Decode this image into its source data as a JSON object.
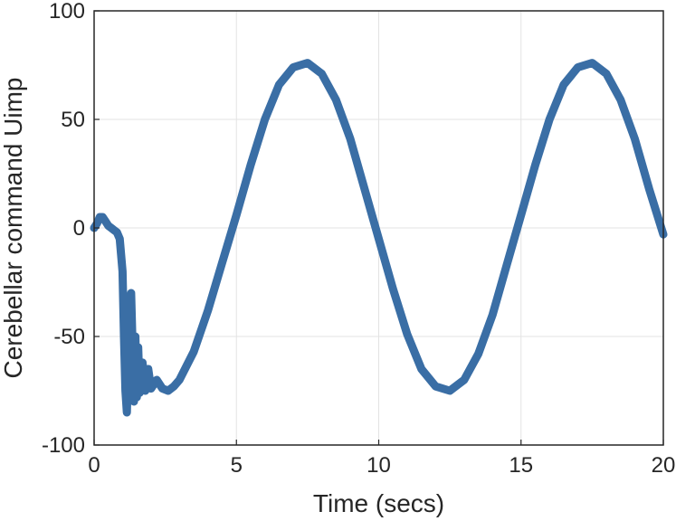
{
  "chart_data": {
    "type": "line",
    "title": "",
    "xlabel": "Time (secs)",
    "ylabel": "Cerebellar command Uimp",
    "xlim": [
      0,
      20
    ],
    "ylim": [
      -100,
      100
    ],
    "xticks": [
      0,
      5,
      10,
      15,
      20
    ],
    "yticks": [
      -100,
      -50,
      0,
      50,
      100
    ],
    "xtick_labels": [
      "0",
      "5",
      "10",
      "15",
      "20"
    ],
    "ytick_labels": [
      "-100",
      "-50",
      "0",
      "50",
      "100"
    ],
    "grid": true,
    "legend": "none",
    "series": [
      {
        "color": "#3a6ea5",
        "points": [
          [
            0.0,
            0
          ],
          [
            0.1,
            2
          ],
          [
            0.2,
            5
          ],
          [
            0.3,
            5
          ],
          [
            0.4,
            3
          ],
          [
            0.5,
            1
          ],
          [
            0.6,
            0
          ],
          [
            0.7,
            -1
          ],
          [
            0.8,
            -2
          ],
          [
            0.9,
            -5
          ],
          [
            1.0,
            -20
          ],
          [
            1.05,
            -50
          ],
          [
            1.1,
            -75
          ],
          [
            1.15,
            -85
          ],
          [
            1.2,
            -60
          ],
          [
            1.25,
            -40
          ],
          [
            1.3,
            -30
          ],
          [
            1.35,
            -55
          ],
          [
            1.4,
            -80
          ],
          [
            1.45,
            -50
          ],
          [
            1.5,
            -78
          ],
          [
            1.55,
            -55
          ],
          [
            1.6,
            -76
          ],
          [
            1.7,
            -62
          ],
          [
            1.8,
            -75
          ],
          [
            1.9,
            -65
          ],
          [
            2.0,
            -74
          ],
          [
            2.2,
            -70
          ],
          [
            2.4,
            -74
          ],
          [
            2.6,
            -75
          ],
          [
            2.8,
            -73
          ],
          [
            3.0,
            -70
          ],
          [
            3.5,
            -57
          ],
          [
            4.0,
            -38
          ],
          [
            4.5,
            -16
          ],
          [
            5.0,
            6
          ],
          [
            5.5,
            29
          ],
          [
            6.0,
            50
          ],
          [
            6.5,
            66
          ],
          [
            7.0,
            74
          ],
          [
            7.5,
            76
          ],
          [
            8.0,
            71
          ],
          [
            8.5,
            59
          ],
          [
            9.0,
            41
          ],
          [
            9.5,
            18
          ],
          [
            10.0,
            -5
          ],
          [
            10.5,
            -28
          ],
          [
            11.0,
            -49
          ],
          [
            11.5,
            -65
          ],
          [
            12.0,
            -73
          ],
          [
            12.5,
            -75
          ],
          [
            13.0,
            -70
          ],
          [
            13.5,
            -58
          ],
          [
            14.0,
            -40
          ],
          [
            14.5,
            -17
          ],
          [
            15.0,
            6
          ],
          [
            15.5,
            29
          ],
          [
            16.0,
            50
          ],
          [
            16.5,
            66
          ],
          [
            17.0,
            74
          ],
          [
            17.5,
            76
          ],
          [
            18.0,
            71
          ],
          [
            18.5,
            59
          ],
          [
            19.0,
            41
          ],
          [
            19.5,
            18
          ],
          [
            20.0,
            -3
          ]
        ]
      }
    ]
  }
}
